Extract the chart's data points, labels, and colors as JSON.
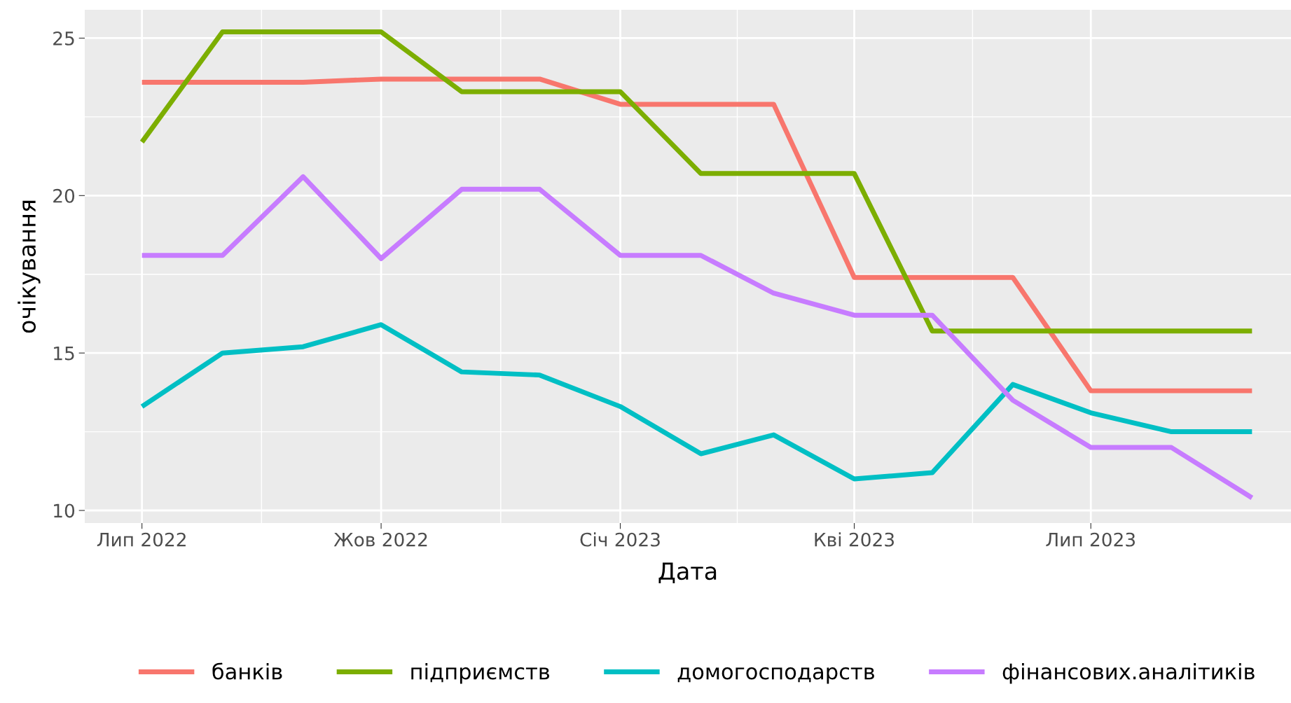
{
  "chart_data": {
    "type": "line",
    "xlabel": "Дата",
    "ylabel": "очікування",
    "x": [
      "2022-07",
      "2022-08",
      "2022-09",
      "2022-10",
      "2022-11",
      "2022-12",
      "2023-01",
      "2023-02",
      "2023-03",
      "2023-04",
      "2023-05",
      "2023-06",
      "2023-07",
      "2023-08",
      "2023-09"
    ],
    "series": [
      {
        "name": "банків",
        "color": "#f8766d",
        "values": [
          23.6,
          23.6,
          23.6,
          23.7,
          23.7,
          23.7,
          22.9,
          22.9,
          22.9,
          17.4,
          17.4,
          17.4,
          13.8,
          13.8,
          13.8
        ]
      },
      {
        "name": "підприємств",
        "color": "#7cae00",
        "values": [
          21.7,
          25.2,
          25.2,
          25.2,
          23.3,
          23.3,
          23.3,
          20.7,
          20.7,
          20.7,
          15.7,
          15.7,
          15.7,
          15.7,
          15.7
        ]
      },
      {
        "name": "домогосподарств",
        "color": "#00bfc4",
        "values": [
          13.3,
          15.0,
          15.2,
          15.9,
          14.4,
          14.3,
          13.3,
          11.8,
          12.4,
          11.0,
          11.2,
          14.0,
          13.1,
          12.5,
          12.5
        ]
      },
      {
        "name": "фінансових.аналітиків",
        "color": "#c77cff",
        "values": [
          18.1,
          18.1,
          20.6,
          18.0,
          20.2,
          20.2,
          18.1,
          18.1,
          16.9,
          16.2,
          16.2,
          13.5,
          12.0,
          12.0,
          10.4
        ]
      }
    ],
    "xlim": [
      "2022-06-09",
      "2023-09-16"
    ],
    "xticks": [
      {
        "value": "2022-07",
        "label": "Лип 2022"
      },
      {
        "value": "2022-10",
        "label": "Жов 2022"
      },
      {
        "value": "2023-01",
        "label": "Січ 2023"
      },
      {
        "value": "2023-04",
        "label": "Кві 2023"
      },
      {
        "value": "2023-07",
        "label": "Лип 2023"
      }
    ],
    "ylim": [
      9.6,
      25.9
    ],
    "yticks": [
      10,
      15,
      20,
      25
    ],
    "grid": true,
    "legend": "bottom",
    "line_style": "solid",
    "marker": "none"
  }
}
